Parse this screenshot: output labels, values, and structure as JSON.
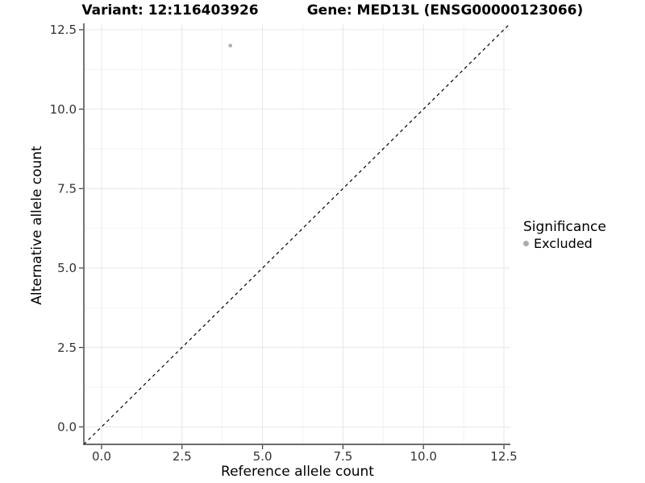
{
  "figure": {
    "title_left": "Variant: 12:116403926",
    "title_right": "Gene: MED13L (ENSG00000123066)"
  },
  "axes": {
    "x_title": "Reference allele count",
    "y_title": "Alternative allele count"
  },
  "legend": {
    "title": "Significance",
    "items": [
      {
        "label": "Excluded",
        "color": "#acacac"
      }
    ]
  },
  "chart_data": {
    "type": "scatter",
    "title": "Variant: 12:116403926    Gene: MED13L (ENSG00000123066)",
    "xlabel": "Reference allele count",
    "ylabel": "Alternative allele count",
    "xlim": [
      -0.55,
      12.7
    ],
    "ylim": [
      -0.55,
      12.7
    ],
    "x_ticks": {
      "values": [
        0,
        2.5,
        5,
        7.5,
        10,
        12.5
      ],
      "labels": [
        "0.0",
        "2.5",
        "5.0",
        "7.5",
        "10.0",
        "12.5"
      ]
    },
    "y_ticks": {
      "values": [
        0,
        2.5,
        5,
        7.5,
        10,
        12.5
      ],
      "labels": [
        "0.0",
        "2.5",
        "5.0",
        "7.5",
        "10.0",
        "12.5"
      ]
    },
    "x_minor_ticks": [
      1.25,
      3.75,
      6.25,
      8.75,
      11.25
    ],
    "y_minor_ticks": [
      1.25,
      3.75,
      6.25,
      8.75,
      11.25
    ],
    "grid": true,
    "legend_position": "right",
    "series": [
      {
        "name": "Excluded",
        "color": "#acacac",
        "points": [
          {
            "x": 4,
            "y": 12
          }
        ]
      }
    ],
    "reference_line": {
      "kind": "identity",
      "equation": "y = x",
      "style": "dashed",
      "color": "#000000"
    }
  },
  "style": {
    "background": "#ffffff",
    "grid_major": "#e6e6e6",
    "grid_minor": "#f2f2f2",
    "axis_line": "#3a3a3a",
    "tick_mark": "#3a3a3a",
    "tick_label_color": "#333333",
    "point_color": "#acacac",
    "point_radius": 2.3
  }
}
